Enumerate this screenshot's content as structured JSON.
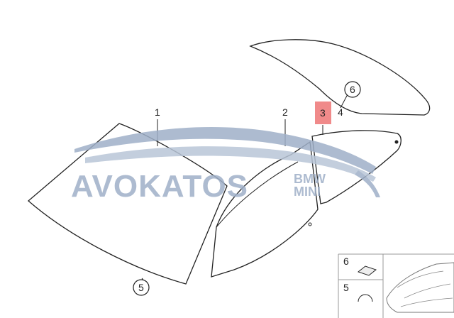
{
  "callouts": {
    "part_1": "1",
    "part_2": "2",
    "part_3": "3",
    "part_4": "4",
    "part_5": "5",
    "part_6": "6"
  },
  "highlight_color": "#f08a8a",
  "watermark": {
    "brand": "AVOKATOS",
    "sub_top": "BMW",
    "sub_bottom": "MINI"
  },
  "legend": {
    "item_6": "6",
    "item_5": "5"
  }
}
